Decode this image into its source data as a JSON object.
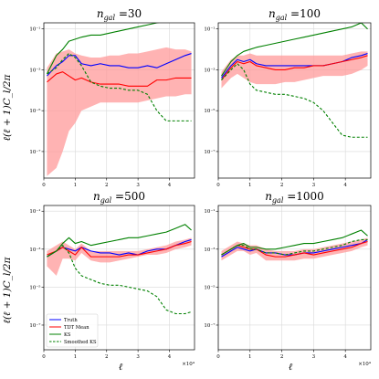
{
  "figure": {
    "ylabel": "ℓ(ℓ + 1)C_l/2π",
    "xlabel": "ℓ",
    "x_offset_label": "×10⁴",
    "x_ticks": [
      0,
      1,
      2,
      3,
      4
    ],
    "y_ticks": [
      -7,
      -5,
      -3,
      -1
    ],
    "y_tick_labels": [
      "10⁻⁷",
      "10⁻⁵",
      "10⁻³",
      "10⁻¹"
    ]
  },
  "chart_data": [
    {
      "type": "line",
      "title": "n_gal = 30",
      "xlim": [
        0,
        4.8
      ],
      "ylim_log10": [
        -8.3,
        -0.7
      ],
      "x": [
        0.1,
        0.4,
        0.6,
        0.8,
        1.0,
        1.2,
        1.5,
        1.8,
        2.1,
        2.4,
        2.7,
        3.0,
        3.3,
        3.6,
        3.9,
        4.2,
        4.5,
        4.7
      ],
      "series": [
        {
          "name": "Truth",
          "color": "#0000ff",
          "style": "solid",
          "log10_values": [
            -3.3,
            -2.8,
            -2.6,
            -2.3,
            -2.3,
            -2.7,
            -2.8,
            -2.7,
            -2.8,
            -2.8,
            -2.9,
            -2.9,
            -2.8,
            -2.9,
            -2.7,
            -2.5,
            -2.3,
            -2.2
          ]
        },
        {
          "name": "TDT Mean",
          "color": "#ff0000",
          "style": "solid",
          "log10_values": [
            -3.6,
            -3.2,
            -3.1,
            -3.3,
            -3.5,
            -3.4,
            -3.6,
            -3.7,
            -3.7,
            -3.7,
            -3.8,
            -3.8,
            -3.8,
            -3.5,
            -3.5,
            -3.4,
            -3.4,
            -3.4
          ]
        },
        {
          "name": "KS",
          "color": "#008000",
          "style": "solid",
          "log10_values": [
            -3.2,
            -2.3,
            -2.0,
            -1.6,
            -1.5,
            -1.4,
            -1.3,
            -1.3,
            -1.2,
            -1.1,
            -1.0,
            -0.9,
            -0.8,
            -0.7,
            -0.6,
            -0.4,
            -0.3,
            -0.5
          ]
        },
        {
          "name": "Smoothed KS",
          "color": "#008000",
          "style": "dashed",
          "log10_values": [
            -3.2,
            -2.9,
            -2.5,
            -2.2,
            -2.4,
            -2.8,
            -3.6,
            -3.8,
            -3.9,
            -3.9,
            -4.0,
            -4.0,
            -4.2,
            -5.0,
            -5.5,
            -5.5,
            -5.5,
            -5.5
          ]
        }
      ],
      "band": {
        "name": "TDT band",
        "color": "#ff9999",
        "x_from_series": true,
        "log10_low": [
          -8.2,
          -7.8,
          -7.0,
          -6.0,
          -5.6,
          -5.0,
          -4.8,
          -4.6,
          -4.6,
          -4.6,
          -4.6,
          -4.6,
          -4.5,
          -4.4,
          -4.3,
          -4.3,
          -4.2,
          -4.2
        ],
        "log10_high": [
          -2.9,
          -2.2,
          -2.1,
          -2.0,
          -2.2,
          -2.3,
          -2.4,
          -2.4,
          -2.3,
          -2.3,
          -2.2,
          -2.2,
          -2.1,
          -2.0,
          -1.9,
          -2.0,
          -2.0,
          -2.1
        ]
      },
      "legend": false
    },
    {
      "type": "line",
      "title": "n_gal = 100",
      "xlim": [
        0,
        4.8
      ],
      "ylim_log10": [
        -8.3,
        -0.7
      ],
      "x": [
        0.1,
        0.4,
        0.6,
        0.8,
        1.0,
        1.2,
        1.5,
        1.8,
        2.1,
        2.4,
        2.7,
        3.0,
        3.3,
        3.6,
        3.9,
        4.2,
        4.5,
        4.7
      ],
      "series": [
        {
          "name": "Truth",
          "color": "#0000ff",
          "style": "solid",
          "log10_values": [
            -3.4,
            -2.8,
            -2.5,
            -2.6,
            -2.5,
            -2.7,
            -2.8,
            -2.8,
            -2.8,
            -2.8,
            -2.8,
            -2.8,
            -2.8,
            -2.7,
            -2.6,
            -2.4,
            -2.3,
            -2.2
          ]
        },
        {
          "name": "TDT Mean",
          "color": "#ff0000",
          "style": "solid",
          "log10_values": [
            -3.5,
            -2.9,
            -2.6,
            -2.7,
            -2.6,
            -2.8,
            -2.9,
            -3.0,
            -3.0,
            -2.9,
            -2.9,
            -2.8,
            -2.8,
            -2.7,
            -2.6,
            -2.5,
            -2.4,
            -2.3
          ]
        },
        {
          "name": "KS",
          "color": "#008000",
          "style": "solid",
          "log10_values": [
            -3.3,
            -2.6,
            -2.3,
            -2.1,
            -2.0,
            -1.9,
            -1.8,
            -1.7,
            -1.6,
            -1.5,
            -1.4,
            -1.3,
            -1.2,
            -1.1,
            -1.0,
            -0.9,
            -0.7,
            -1.0
          ]
        },
        {
          "name": "Smoothed KS",
          "color": "#008000",
          "style": "dashed",
          "log10_values": [
            -3.5,
            -3.0,
            -2.7,
            -3.0,
            -3.7,
            -4.0,
            -4.1,
            -4.2,
            -4.2,
            -4.3,
            -4.4,
            -4.6,
            -5.0,
            -5.6,
            -6.2,
            -6.3,
            -6.3,
            -6.3
          ]
        }
      ],
      "band": {
        "name": "TDT band",
        "color": "#ff9999",
        "x_from_series": true,
        "log10_low": [
          -3.9,
          -3.4,
          -3.2,
          -3.4,
          -3.6,
          -3.7,
          -3.7,
          -3.7,
          -3.6,
          -3.6,
          -3.5,
          -3.4,
          -3.3,
          -3.3,
          -3.3,
          -3.2,
          -3.0,
          -2.8
        ],
        "log10_high": [
          -3.1,
          -2.5,
          -2.3,
          -2.3,
          -2.2,
          -2.3,
          -2.3,
          -2.3,
          -2.3,
          -2.3,
          -2.3,
          -2.3,
          -2.3,
          -2.3,
          -2.3,
          -2.2,
          -2.1,
          -2.1
        ]
      },
      "legend": false
    },
    {
      "type": "line",
      "title": "n_gal = 500",
      "xlim": [
        0,
        4.8
      ],
      "ylim_log10": [
        -8.3,
        -0.7
      ],
      "x": [
        0.1,
        0.4,
        0.6,
        0.8,
        1.0,
        1.2,
        1.5,
        1.8,
        2.1,
        2.4,
        2.7,
        3.0,
        3.3,
        3.6,
        3.9,
        4.2,
        4.5,
        4.7
      ],
      "series": [
        {
          "name": "Truth",
          "color": "#0000ff",
          "style": "solid",
          "log10_values": [
            -3.4,
            -3.1,
            -2.9,
            -3.0,
            -3.1,
            -2.9,
            -3.1,
            -3.2,
            -3.2,
            -3.3,
            -3.2,
            -3.3,
            -3.1,
            -3.0,
            -3.0,
            -2.8,
            -2.6,
            -2.5
          ]
        },
        {
          "name": "TDT Mean",
          "color": "#ff0000",
          "style": "solid",
          "log10_values": [
            -3.3,
            -3.1,
            -2.9,
            -3.1,
            -3.3,
            -2.9,
            -3.4,
            -3.4,
            -3.4,
            -3.4,
            -3.3,
            -3.3,
            -3.2,
            -3.1,
            -3.0,
            -2.8,
            -2.7,
            -2.6
          ]
        },
        {
          "name": "KS",
          "color": "#008000",
          "style": "solid",
          "log10_values": [
            -3.4,
            -3.1,
            -2.7,
            -2.4,
            -2.7,
            -2.6,
            -2.8,
            -2.7,
            -2.6,
            -2.5,
            -2.4,
            -2.4,
            -2.3,
            -2.2,
            -2.1,
            -1.9,
            -1.7,
            -2.0
          ]
        },
        {
          "name": "Smoothed KS",
          "color": "#008000",
          "style": "dashed",
          "log10_values": [
            -3.4,
            -3.1,
            -2.8,
            -3.2,
            -4.0,
            -4.4,
            -4.6,
            -4.8,
            -4.9,
            -4.9,
            -5.0,
            -5.1,
            -5.2,
            -5.5,
            -6.2,
            -6.4,
            -6.4,
            -6.3
          ]
        }
      ],
      "band": {
        "name": "TDT band",
        "color": "#ff9999",
        "x_from_series": true,
        "log10_low": [
          -3.9,
          -4.4,
          -3.5,
          -3.5,
          -3.6,
          -3.2,
          -3.6,
          -3.7,
          -3.7,
          -3.6,
          -3.5,
          -3.4,
          -3.3,
          -3.3,
          -3.2,
          -3.0,
          -2.9,
          -2.8
        ],
        "log10_high": [
          -3.1,
          -2.8,
          -2.6,
          -2.8,
          -3.0,
          -2.7,
          -3.1,
          -3.1,
          -3.1,
          -3.1,
          -3.1,
          -3.1,
          -3.0,
          -2.9,
          -2.8,
          -2.6,
          -2.5,
          -2.4
        ]
      },
      "legend": true
    },
    {
      "type": "line",
      "title": "n_gal = 1000",
      "xlim": [
        0,
        4.8
      ],
      "ylim_log10": [
        -8.3,
        -0.7
      ],
      "x": [
        0.1,
        0.4,
        0.6,
        0.8,
        1.0,
        1.2,
        1.5,
        1.8,
        2.1,
        2.4,
        2.7,
        3.0,
        3.3,
        3.6,
        3.9,
        4.2,
        4.5,
        4.7
      ],
      "series": [
        {
          "name": "Truth",
          "color": "#0000ff",
          "style": "solid",
          "log10_values": [
            -3.4,
            -3.1,
            -2.9,
            -3.0,
            -3.1,
            -3.0,
            -3.2,
            -3.2,
            -3.3,
            -3.3,
            -3.2,
            -3.2,
            -3.1,
            -3.0,
            -2.9,
            -2.8,
            -2.7,
            -2.5
          ]
        },
        {
          "name": "TDT Mean",
          "color": "#ff0000",
          "style": "solid",
          "log10_values": [
            -3.3,
            -3.0,
            -2.8,
            -2.9,
            -3.0,
            -3.0,
            -3.3,
            -3.4,
            -3.4,
            -3.3,
            -3.2,
            -3.3,
            -3.2,
            -3.1,
            -3.0,
            -2.9,
            -2.7,
            -2.6
          ]
        },
        {
          "name": "KS",
          "color": "#008000",
          "style": "solid",
          "log10_values": [
            -3.3,
            -3.0,
            -2.8,
            -2.7,
            -2.9,
            -2.9,
            -3.0,
            -3.0,
            -2.9,
            -2.8,
            -2.7,
            -2.7,
            -2.6,
            -2.5,
            -2.4,
            -2.2,
            -2.0,
            -2.3
          ]
        },
        {
          "name": "Smoothed KS",
          "color": "#008000",
          "style": "dashed",
          "log10_values": [
            -3.3,
            -3.0,
            -2.8,
            -2.8,
            -3.0,
            -3.0,
            -3.2,
            -3.2,
            -3.3,
            -3.2,
            -3.1,
            -3.1,
            -3.0,
            -2.9,
            -2.8,
            -2.6,
            -2.5,
            -2.5
          ]
        }
      ],
      "band": {
        "name": "TDT band",
        "color": "#ff9999",
        "x_from_series": true,
        "log10_low": [
          -3.6,
          -3.3,
          -3.1,
          -3.1,
          -3.3,
          -3.2,
          -3.6,
          -3.6,
          -3.6,
          -3.6,
          -3.5,
          -3.5,
          -3.4,
          -3.3,
          -3.2,
          -3.1,
          -2.9,
          -2.8
        ],
        "log10_high": [
          -3.1,
          -2.8,
          -2.6,
          -2.7,
          -2.8,
          -2.8,
          -3.0,
          -3.1,
          -3.1,
          -3.1,
          -3.0,
          -3.0,
          -2.9,
          -2.8,
          -2.7,
          -2.6,
          -2.5,
          -2.4
        ]
      },
      "legend": false
    }
  ],
  "legend": {
    "entries": [
      {
        "label": "Truth",
        "color": "#0000ff",
        "style": "solid"
      },
      {
        "label": "TDT Mean",
        "color": "#ff0000",
        "style": "solid"
      },
      {
        "label": "KS",
        "color": "#008000",
        "style": "solid"
      },
      {
        "label": "Smoothed KS",
        "color": "#008000",
        "style": "dashed"
      }
    ]
  }
}
